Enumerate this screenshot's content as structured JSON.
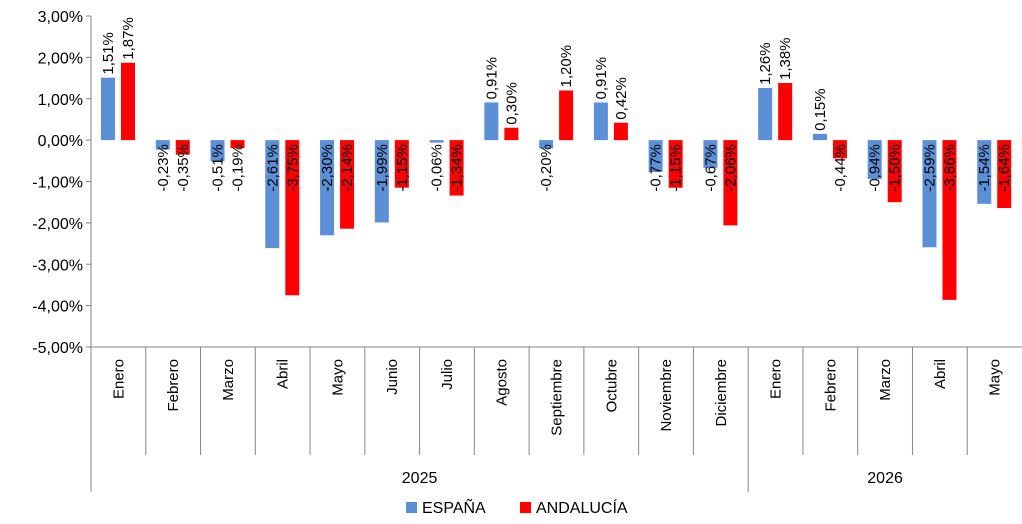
{
  "chart_data": {
    "type": "bar",
    "categories": [
      "Enero",
      "Febrero",
      "Marzo",
      "Abril",
      "Mayo",
      "Junio",
      "Julio",
      "Agosto",
      "Septiembre",
      "Octubre",
      "Noviembre",
      "Diciembre",
      "Enero",
      "Febrero",
      "Marzo",
      "Abril",
      "Mayo"
    ],
    "groups": [
      {
        "label": "2025",
        "count": 12
      },
      {
        "label": "2026",
        "count": 5
      }
    ],
    "series": [
      {
        "name": "ESPAÑA",
        "color": "#5b8fd6",
        "values": [
          1.51,
          -0.23,
          -0.51,
          -2.61,
          -2.3,
          -1.99,
          -0.06,
          0.91,
          -0.2,
          0.91,
          -0.77,
          -0.67,
          1.26,
          0.15,
          -0.94,
          -2.59,
          -1.54
        ],
        "labels": [
          "1,51%",
          "-0,23%",
          "-0,51%",
          "-2,61%",
          "-2,30%",
          "-1,99%",
          "-0,06%",
          "0,91%",
          "-0,20%",
          "0,91%",
          "-0,77%",
          "-0,67%",
          "1,26%",
          "0,15%",
          "-0,94%",
          "-2,59%",
          "-1,54%"
        ]
      },
      {
        "name": "ANDALUCÍA",
        "color": "#ff0000",
        "values": [
          1.87,
          -0.35,
          -0.19,
          -3.75,
          -2.14,
          -1.15,
          -1.34,
          0.3,
          1.2,
          0.42,
          -1.15,
          -2.06,
          1.38,
          -0.44,
          -1.5,
          -3.86,
          -1.64
        ],
        "labels": [
          "1,87%",
          "-0,35%",
          "-0,19%",
          "-3,75%",
          "-2,14%",
          "-1,15%",
          "-1,34%",
          "0,30%",
          "1,20%",
          "0,42%",
          "-1,15%",
          "-2,06%",
          "1,38%",
          "-0,44%",
          "-1,50%",
          "-3,86%",
          "-1,64%"
        ]
      }
    ],
    "ylim": [
      -5,
      3
    ],
    "yticks": [
      3,
      2,
      1,
      0,
      -1,
      -2,
      -3,
      -4,
      -5
    ],
    "ytick_labels": [
      "3,00%",
      "2,00%",
      "1,00%",
      "0,00%",
      "-1,00%",
      "-2,00%",
      "-3,00%",
      "-4,00%",
      "-5,00%"
    ],
    "grid": false,
    "legend_position": "bottom",
    "title": "",
    "xlabel": "",
    "ylabel": ""
  }
}
